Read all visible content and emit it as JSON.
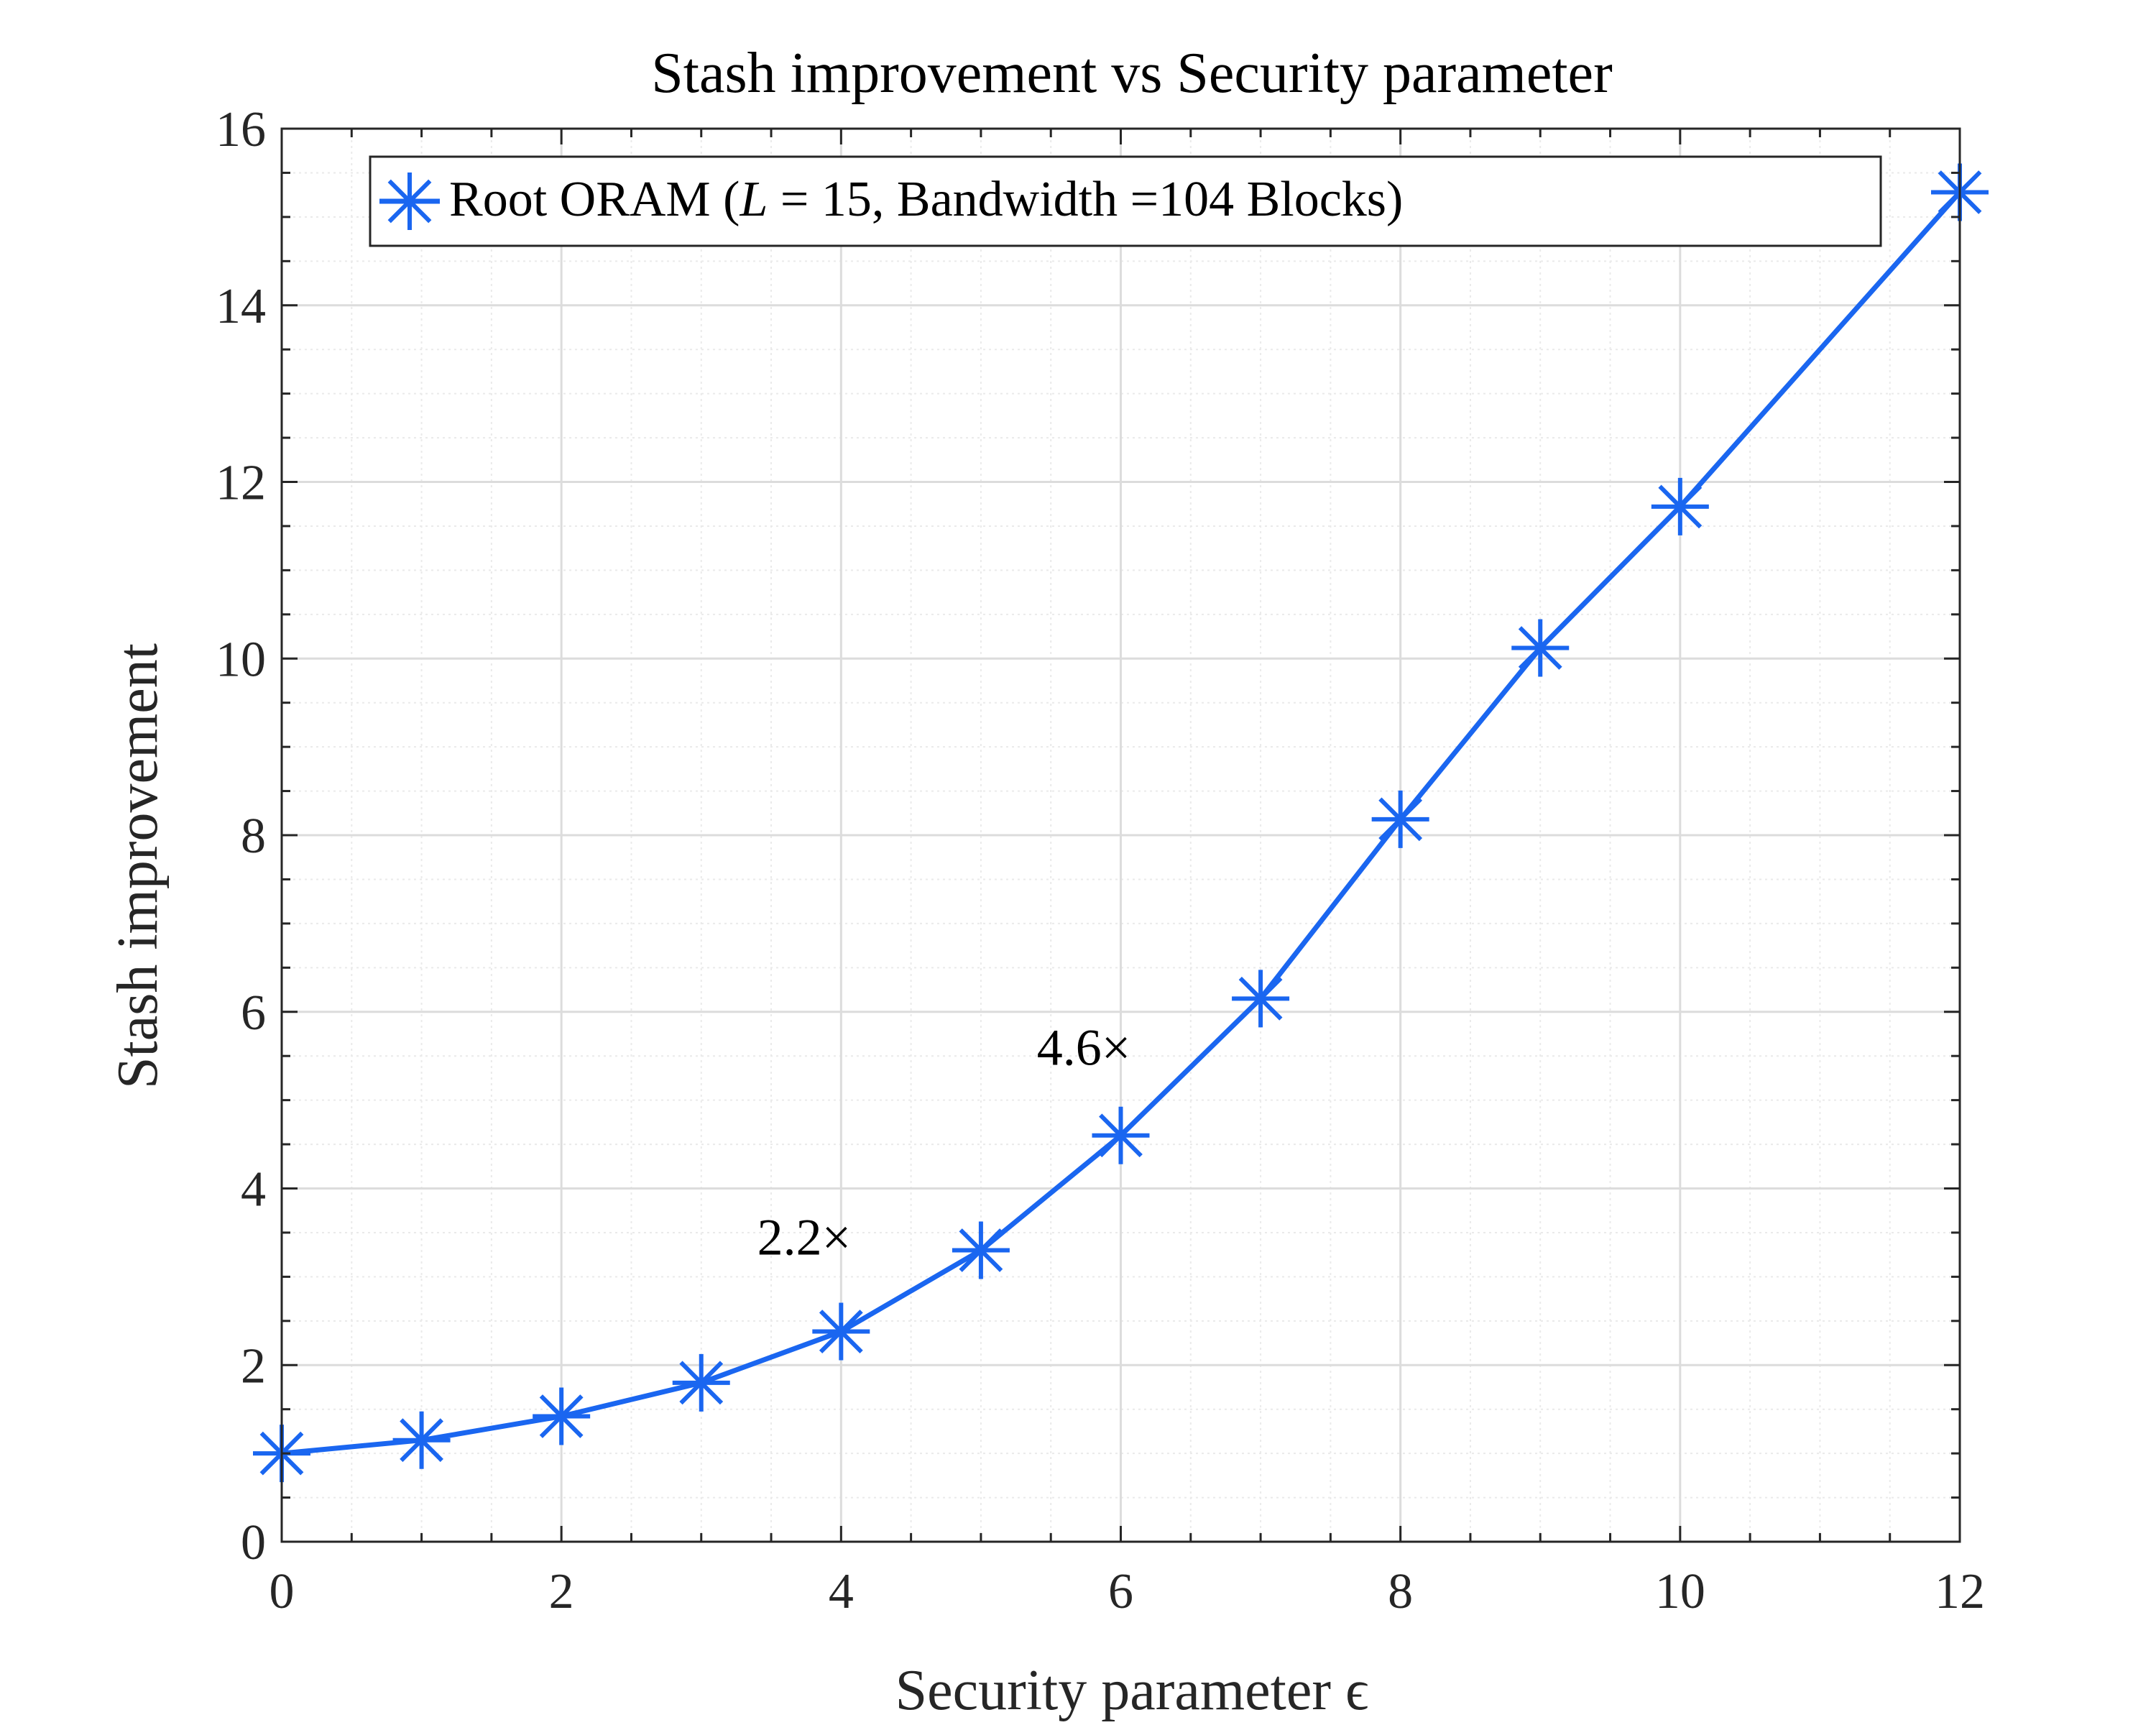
{
  "chart_data": {
    "type": "line",
    "title": "Stash improvement vs Security parameter",
    "xlabel": "Security parameter ϵ",
    "ylabel": "Stash improvement",
    "xlim": [
      0,
      12
    ],
    "ylim": [
      0,
      16
    ],
    "x_ticks": [
      0,
      2,
      4,
      6,
      8,
      10,
      12
    ],
    "y_ticks": [
      0,
      2,
      4,
      6,
      8,
      10,
      12,
      14,
      16
    ],
    "x_tick_labels": [
      "0",
      "2",
      "4",
      "6",
      "8",
      "10",
      "12"
    ],
    "y_tick_labels": [
      "0",
      "2",
      "4",
      "6",
      "8",
      "10",
      "12",
      "14",
      "16"
    ],
    "grid": true,
    "minor_grid": true,
    "legend_position": "top",
    "series": [
      {
        "name": "Root ORAM (L = 15, Bandwidth =104 Blocks)",
        "legend_parts": {
          "prefix": "Root ORAM (",
          "var": "L",
          "middle": " = 15, Bandwidth =104 Blocks)"
        },
        "color": "#1a66f0",
        "marker": "asterisk",
        "x": [
          0,
          1,
          2,
          3,
          4,
          5,
          6,
          7,
          8,
          9,
          10,
          12
        ],
        "y": [
          1.0,
          1.15,
          1.42,
          1.8,
          2.38,
          3.3,
          4.6,
          6.15,
          8.18,
          10.12,
          11.72,
          15.28
        ]
      }
    ],
    "annotations": [
      {
        "text": "2.2×",
        "x": 3.4,
        "y": 3.25
      },
      {
        "text": "4.6×",
        "x": 5.4,
        "y": 5.4
      }
    ]
  },
  "colors": {
    "series": "#1a66f0",
    "axis": "#262626",
    "grid_major": "#dcdcdc",
    "grid_minor": "#eaeaea"
  }
}
